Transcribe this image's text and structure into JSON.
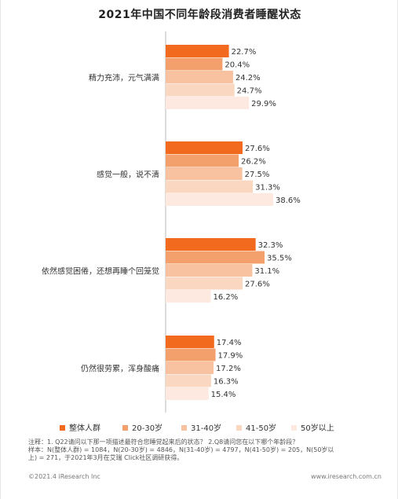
{
  "title": "2021年中国不同年龄段消费者睡醒状态",
  "chart_data": {
    "type": "bar",
    "orientation": "horizontal",
    "title": "2021年中国不同年龄段消费者睡醒状态",
    "value_suffix": "%",
    "xlim": [
      0,
      40
    ],
    "categories": [
      "精力充沛，元气满满",
      "感觉一般，说不清",
      "依然感觉困倦，还想再睡个回笼觉",
      "仍然很劳累，浑身酸痛"
    ],
    "series": [
      {
        "name": "整体人群",
        "color": "#f26a1e",
        "values": [
          22.7,
          27.6,
          32.3,
          17.4
        ]
      },
      {
        "name": "20-30岁",
        "color": "#f4a06d",
        "values": [
          20.4,
          26.2,
          35.5,
          17.9
        ]
      },
      {
        "name": "31-40岁",
        "color": "#f8c2a0",
        "values": [
          24.2,
          27.5,
          31.1,
          17.2
        ]
      },
      {
        "name": "41-50岁",
        "color": "#fad7c1",
        "values": [
          24.7,
          31.3,
          27.6,
          16.3
        ]
      },
      {
        "name": "50岁以上",
        "color": "#fde9df",
        "values": [
          29.9,
          38.6,
          16.2,
          15.4
        ]
      }
    ],
    "grid": false,
    "legend_position": "bottom"
  },
  "notes": {
    "line1": "注释：1. Q22请问以下那一项描述最符合您睡觉起来后的状态？ 2.Q8请问您在以下哪个年龄段？",
    "line2": "样本：N(整体人群) = 1084，N(20-30岁) = 4846，N(31-40岁) = 4797，N(41-50岁) = 205，N(50岁以",
    "line3": "上) = 271，于2021年3月在艾瑞 Click社区调研获得。"
  },
  "footer": {
    "copyright": "©2021.4 iResearch Inc",
    "website": "www.iresearch.com.cn"
  }
}
